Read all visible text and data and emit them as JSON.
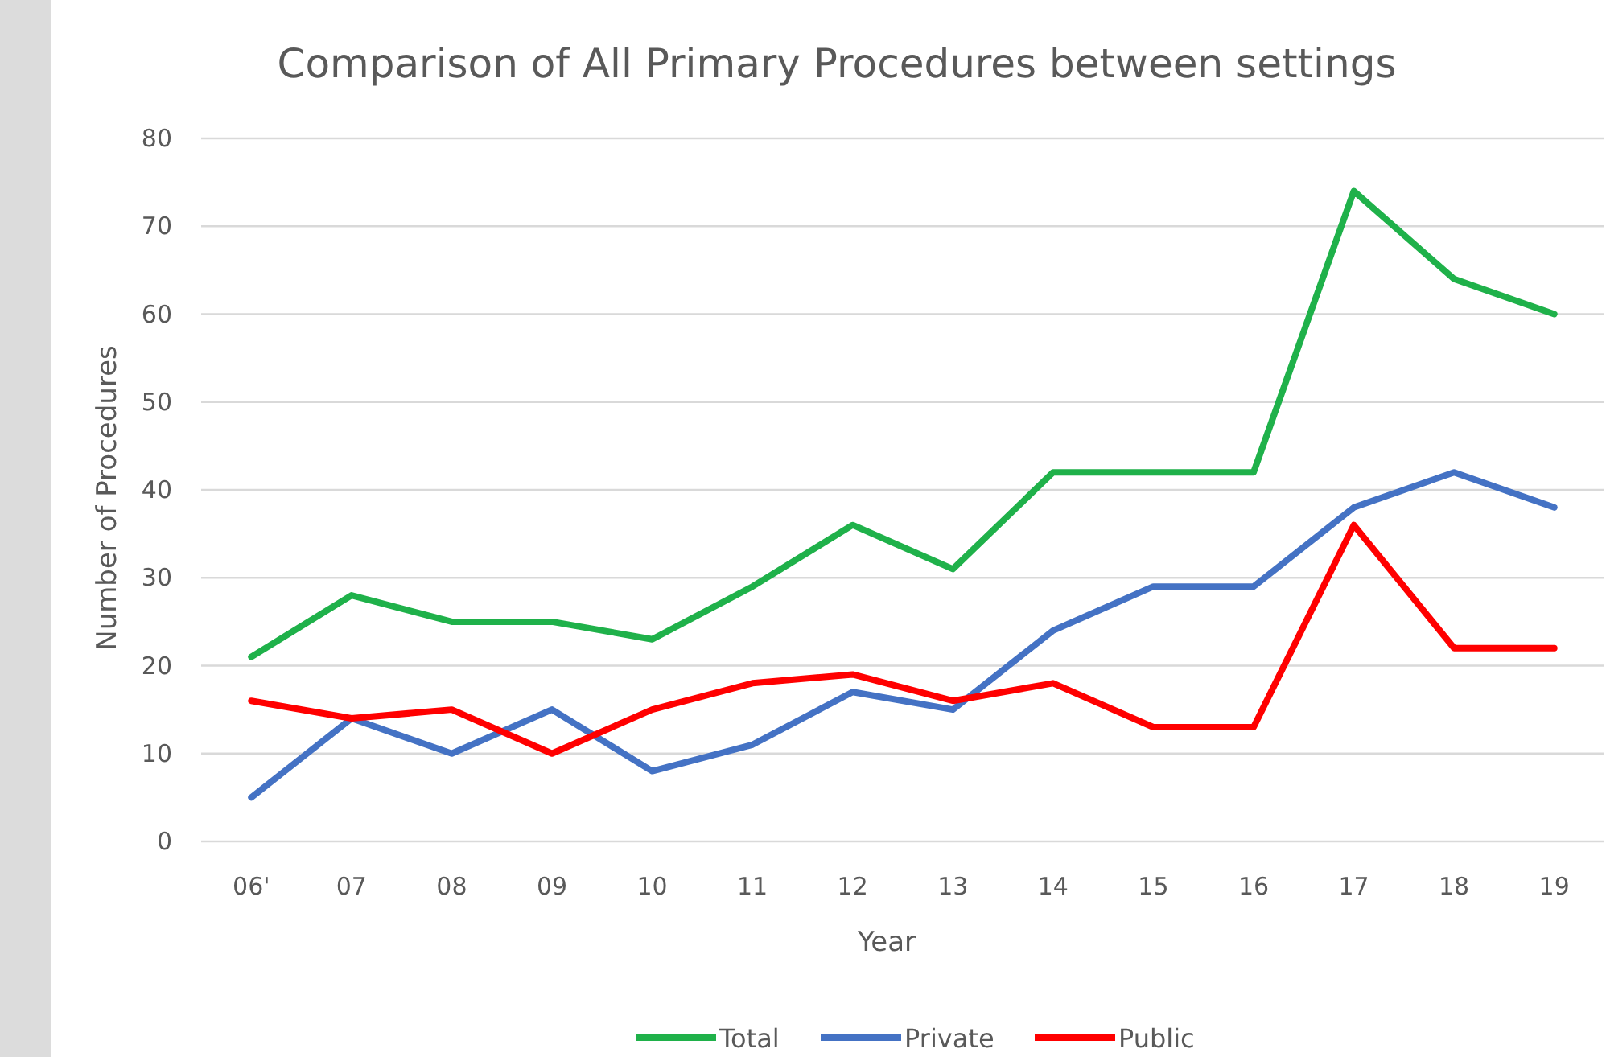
{
  "chart_data": {
    "type": "line",
    "title": "Comparison of All Primary Procedures between settings",
    "xlabel": "Year",
    "ylabel": "Number of Procedures",
    "categories": [
      "06'",
      "07",
      "08",
      "09",
      "10",
      "11",
      "12",
      "13",
      "14",
      "15",
      "16",
      "17",
      "18",
      "19"
    ],
    "series": [
      {
        "name": "Total",
        "color": "#1fb14a",
        "values": [
          21,
          28,
          25,
          25,
          23,
          29,
          36,
          31,
          42,
          42,
          42,
          74,
          64,
          60
        ]
      },
      {
        "name": "Private",
        "color": "#4472c4",
        "values": [
          5,
          14,
          10,
          15,
          8,
          11,
          17,
          15,
          24,
          29,
          29,
          38,
          42,
          38
        ]
      },
      {
        "name": "Public",
        "color": "#ff0000",
        "values": [
          16,
          14,
          15,
          10,
          15,
          18,
          19,
          16,
          18,
          13,
          13,
          36,
          22,
          22
        ]
      }
    ],
    "ylim": [
      0,
      80
    ],
    "yticks": [
      0,
      10,
      20,
      30,
      40,
      50,
      60,
      70,
      80
    ],
    "grid": "y",
    "legend": "bottom",
    "marker": "none",
    "line_style": "solid"
  }
}
